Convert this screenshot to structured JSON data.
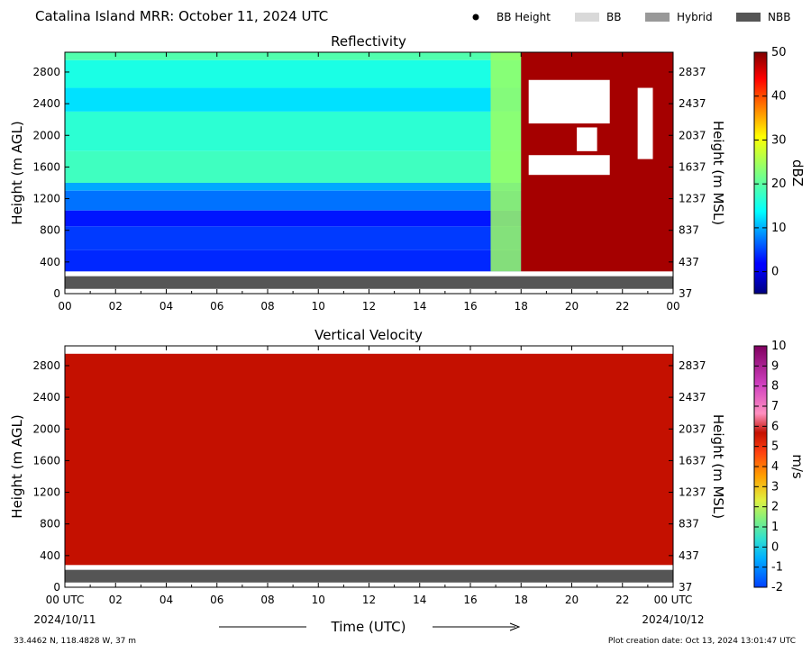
{
  "header": {
    "title": "Catalina Island MRR:  October 11, 2024 UTC",
    "legend": [
      {
        "label": "BB Height",
        "kind": "dot",
        "color": "#000000"
      },
      {
        "label": "BB",
        "kind": "patch",
        "color": "#d9d9d9"
      },
      {
        "label": "Hybrid",
        "kind": "patch",
        "color": "#999999"
      },
      {
        "label": "NBB",
        "kind": "patch",
        "color": "#555555"
      }
    ]
  },
  "chart_data": [
    {
      "type": "heatmap",
      "title": "Reflectivity",
      "ylabel": "Height (m AGL)",
      "ylabel_right": "Height (m MSL)",
      "x_ticks": [
        "00",
        "02",
        "04",
        "06",
        "08",
        "10",
        "12",
        "14",
        "16",
        "18",
        "20",
        "22",
        "00"
      ],
      "x_range_hours": [
        0,
        24
      ],
      "y_ticks_left": [
        "0",
        "400",
        "800",
        "1200",
        "1600",
        "2000",
        "2400",
        "2800"
      ],
      "y_ticks_right": [
        "37",
        "437",
        "837",
        "1237",
        "1637",
        "2037",
        "2437",
        "2837"
      ],
      "y_range": [
        0,
        3050
      ],
      "colorbar": {
        "label": "dBZ",
        "ticks": [
          "0",
          "10",
          "20",
          "30",
          "40",
          "50"
        ],
        "range": [
          -5,
          50
        ],
        "colormap": "jet"
      },
      "bands": [
        {
          "y0": 2950,
          "y1": 3050,
          "dbz": 20
        },
        {
          "y0": 2600,
          "y1": 2950,
          "dbz": 17
        },
        {
          "y0": 2300,
          "y1": 2600,
          "dbz": 14
        },
        {
          "y0": 1800,
          "y1": 2300,
          "dbz": 18
        },
        {
          "y0": 1400,
          "y1": 1800,
          "dbz": 19
        },
        {
          "y0": 1300,
          "y1": 1400,
          "dbz": 11
        },
        {
          "y0": 1050,
          "y1": 1300,
          "dbz": 8
        },
        {
          "y0": 850,
          "y1": 1050,
          "dbz": 3
        },
        {
          "y0": 550,
          "y1": 850,
          "dbz": 5
        },
        {
          "y0": 280,
          "y1": 550,
          "dbz": 4
        }
      ],
      "data_floor": 280,
      "rain_period_hours": [
        18,
        24
      ],
      "rain_dbz": 48,
      "nbb_layer": [
        60,
        220
      ]
    },
    {
      "type": "heatmap",
      "title": "Vertical Velocity",
      "ylabel": "Height (m AGL)",
      "ylabel_right": "Height (m MSL)",
      "x_ticks": [
        "00 UTC",
        "02",
        "04",
        "06",
        "08",
        "10",
        "12",
        "14",
        "16",
        "18",
        "20",
        "22",
        "00 UTC"
      ],
      "x_dates": [
        "2024/10/11",
        "2024/10/12"
      ],
      "x_range_hours": [
        0,
        24
      ],
      "y_ticks_left": [
        "0",
        "400",
        "800",
        "1200",
        "1600",
        "2000",
        "2400",
        "2800"
      ],
      "y_ticks_right": [
        "37",
        "437",
        "837",
        "1237",
        "1637",
        "2037",
        "2437",
        "2837"
      ],
      "y_range": [
        0,
        3050
      ],
      "colorbar": {
        "label": "m/s",
        "ticks": [
          "-2",
          "-1",
          "0",
          "1",
          "2",
          "3",
          "4",
          "5",
          "6",
          "7",
          "8",
          "9",
          "10"
        ],
        "range": [
          -2,
          10
        ]
      },
      "field_value": 6,
      "field_color": "#c41000",
      "data_floor": 280,
      "data_top": 2950,
      "nbb_layer": [
        60,
        220
      ]
    }
  ],
  "footer": {
    "xlabel": "Time (UTC)",
    "location": "33.4462 N, 118.4828 W, 37 m",
    "creation": "Plot creation date: Oct 13, 2024 13:01:47 UTC"
  }
}
